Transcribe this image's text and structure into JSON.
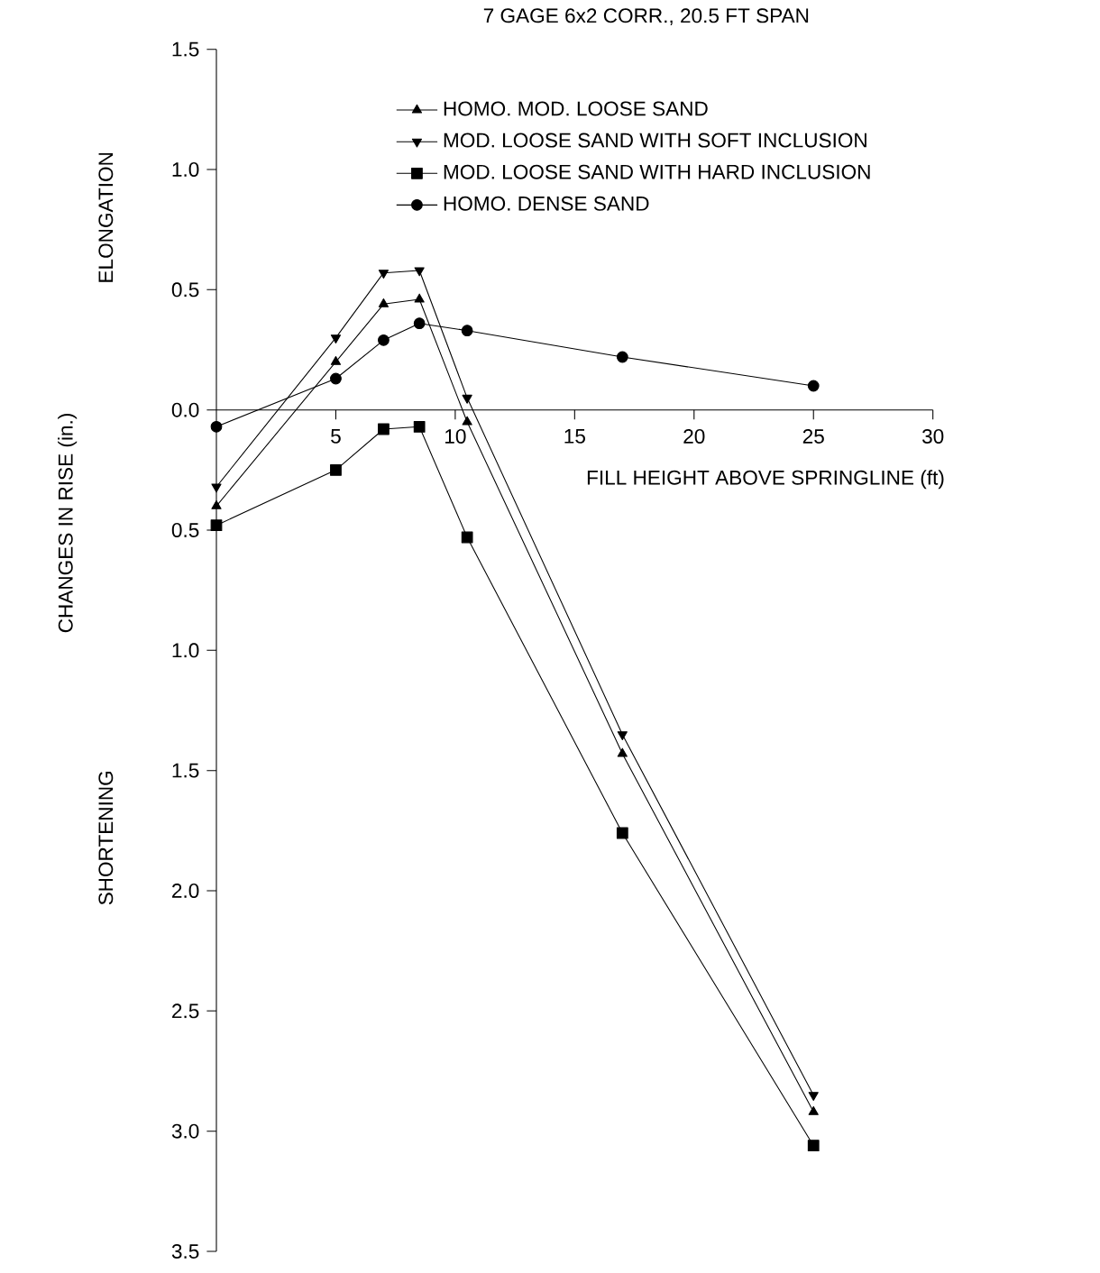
{
  "chart_data": {
    "type": "line",
    "title": "7 GAGE 6x2 CORR., 20.5 FT SPAN",
    "xlabel": "FILL HEIGHT ABOVE SPRINGLINE (ft)",
    "ylabel": "CHANGES IN RISE (in.)",
    "annotations": [
      "ELONGATION",
      "SHORTENING"
    ],
    "x": [
      0,
      5,
      7,
      8.5,
      10.5,
      17,
      25
    ],
    "series": [
      {
        "name": "HOMO. MOD. LOOSE SAND",
        "color": "#000000",
        "marker": "triangle",
        "values": [
          -0.4,
          0.2,
          0.44,
          0.46,
          -0.05,
          -1.43,
          -2.92
        ]
      },
      {
        "name": "MOD. LOOSE SAND WITH SOFT INCLUSION",
        "color": "#000000",
        "marker": "triangle-down",
        "values": [
          -0.32,
          0.3,
          0.57,
          0.58,
          0.05,
          -1.35,
          -2.85
        ]
      },
      {
        "name": "MOD. LOOSE SAND WITH HARD INCLUSION",
        "color": "#000000",
        "marker": "square",
        "values": [
          -0.48,
          -0.25,
          -0.08,
          -0.07,
          -0.53,
          -1.76,
          -3.06
        ]
      },
      {
        "name": "HOMO. DENSE SAND",
        "color": "#000000",
        "marker": "circle",
        "values": [
          -0.07,
          0.13,
          0.29,
          0.36,
          0.33,
          0.22,
          0.1
        ]
      }
    ],
    "xlim": [
      0,
      30
    ],
    "ylim": [
      -3.5,
      1.5
    ],
    "xticks": [
      5,
      10,
      15,
      20,
      25,
      30
    ],
    "yticks": [
      {
        "value": 1.5,
        "label": "1.5"
      },
      {
        "value": 1.0,
        "label": "1.0"
      },
      {
        "value": 0.5,
        "label": "0.5"
      },
      {
        "value": 0.0,
        "label": "0.0"
      },
      {
        "value": -0.5,
        "label": "0.5"
      },
      {
        "value": -1.0,
        "label": "1.0"
      },
      {
        "value": -1.5,
        "label": "1.5"
      },
      {
        "value": -2.0,
        "label": "2.0"
      },
      {
        "value": -2.5,
        "label": "2.5"
      },
      {
        "value": -3.0,
        "label": "3.0"
      },
      {
        "value": -3.5,
        "label": "3.5"
      }
    ],
    "grid": false,
    "legend": "top",
    "line_style": "solid"
  }
}
